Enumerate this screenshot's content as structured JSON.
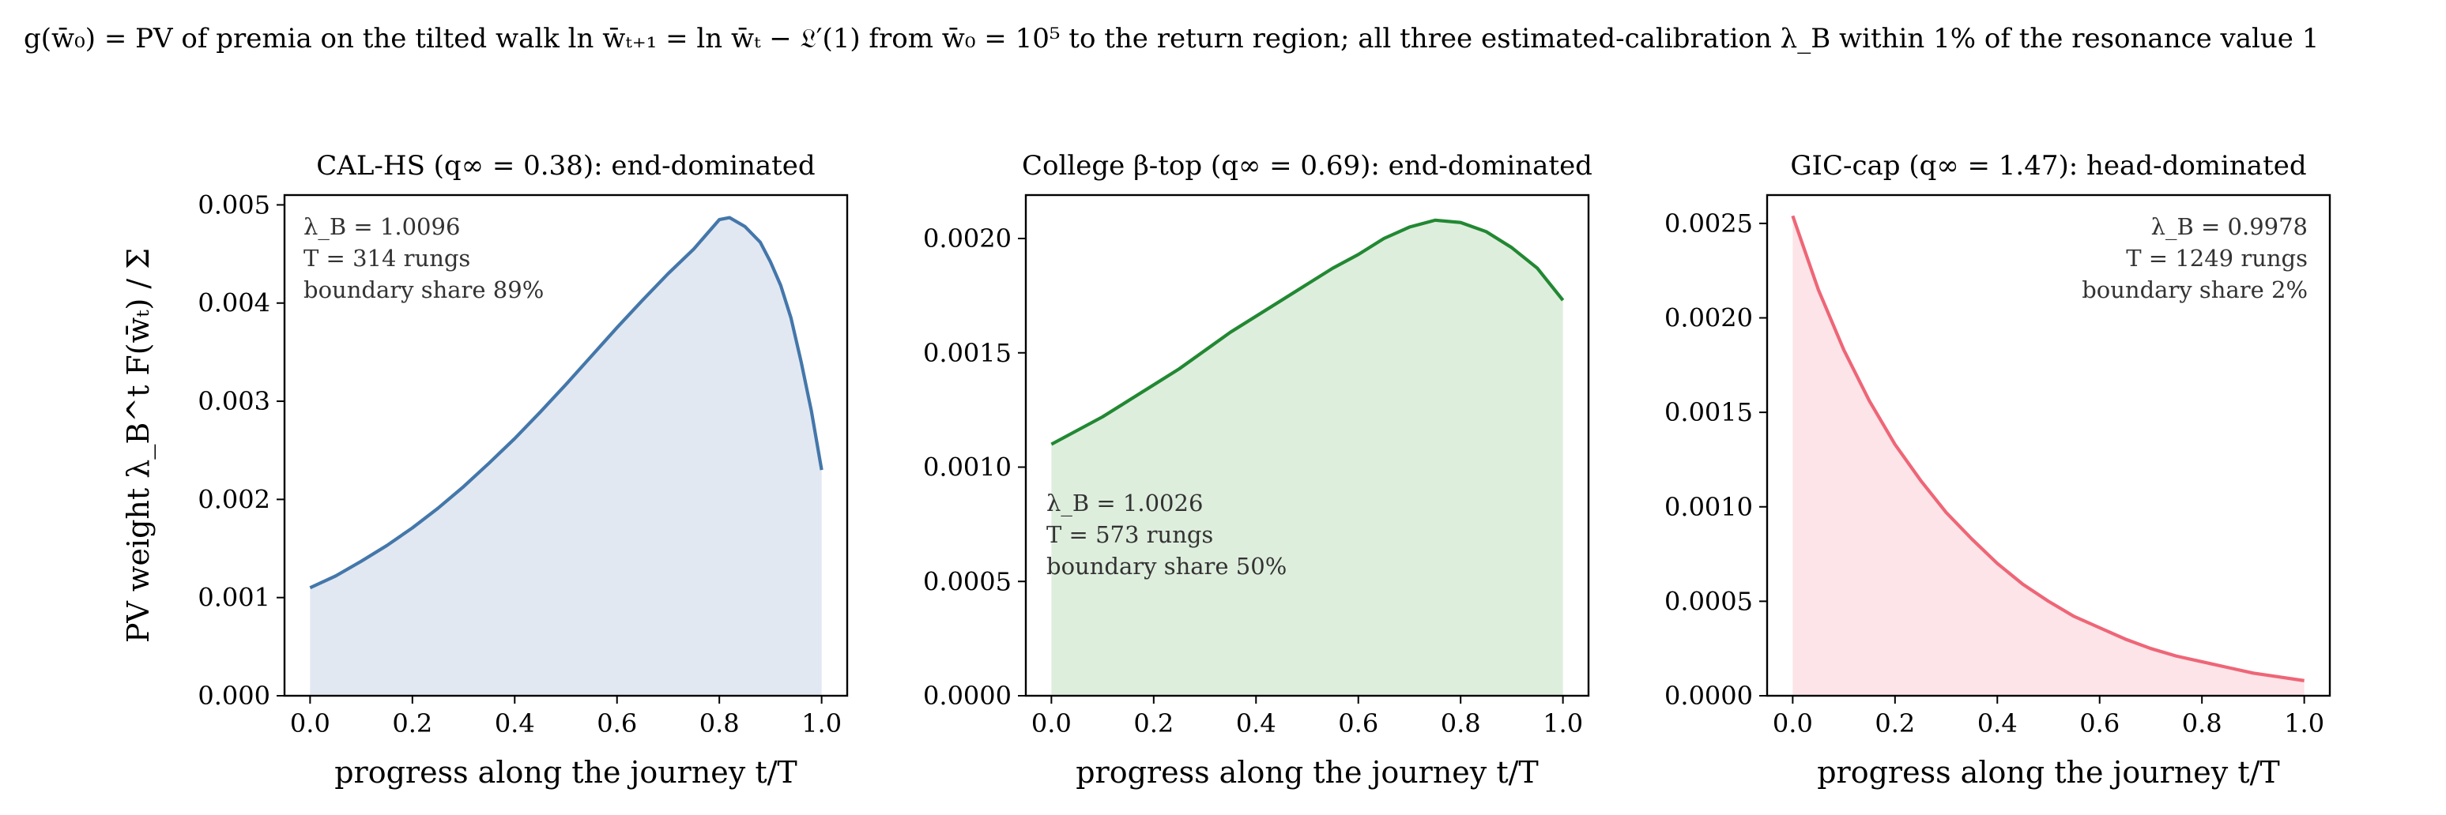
{
  "suptitle": "g(w̄₀) = PV of premia on the tilted walk ln w̄ₜ₊₁ = ln w̄ₜ − 𝔏′(1) from w̄₀ = 10⁵ to the return region;  all three estimated-calibration λ_B within 1% of the resonance value 1",
  "chart_data": [
    {
      "type": "area",
      "title": "CAL-HS (q∞ = 0.38): end-dominated",
      "xlabel": "progress along the journey  t/T",
      "ylabel": "PV weight  λ_B^t F(w̄ₜ) / Σ",
      "xlim": [
        -0.05,
        1.05
      ],
      "ylim": [
        0,
        0.0051
      ],
      "xticks": [
        "0.0",
        "0.2",
        "0.4",
        "0.6",
        "0.8",
        "1.0"
      ],
      "yticks": [
        "0.000",
        "0.001",
        "0.002",
        "0.003",
        "0.004",
        "0.005"
      ],
      "annotation": [
        "λ_B = 1.0096",
        "T = 314 rungs",
        "boundary share 89%"
      ],
      "annotation_position": "top-left",
      "color": "#4477aa",
      "fill": "#e2e8f1",
      "x": [
        0.0,
        0.05,
        0.1,
        0.15,
        0.2,
        0.25,
        0.3,
        0.35,
        0.4,
        0.45,
        0.5,
        0.55,
        0.6,
        0.65,
        0.7,
        0.75,
        0.8,
        0.82,
        0.85,
        0.88,
        0.9,
        0.92,
        0.94,
        0.96,
        0.98,
        1.0
      ],
      "y": [
        0.0011,
        0.00122,
        0.00137,
        0.00153,
        0.00171,
        0.00191,
        0.00213,
        0.00237,
        0.00262,
        0.00289,
        0.00317,
        0.00346,
        0.00375,
        0.00403,
        0.0043,
        0.00455,
        0.00485,
        0.00487,
        0.00478,
        0.00462,
        0.00442,
        0.00418,
        0.00385,
        0.0034,
        0.0029,
        0.0023
      ]
    },
    {
      "type": "area",
      "title": "College β-top (q∞ = 0.69): end-dominated",
      "xlabel": "progress along the journey  t/T",
      "ylabel": "",
      "xlim": [
        -0.05,
        1.05
      ],
      "ylim": [
        0,
        0.00219
      ],
      "xticks": [
        "0.0",
        "0.2",
        "0.4",
        "0.6",
        "0.8",
        "1.0"
      ],
      "yticks": [
        "0.0000",
        "0.0005",
        "0.0010",
        "0.0015",
        "0.0020"
      ],
      "annotation": [
        "λ_B = 1.0026",
        "T = 573 rungs",
        "boundary share 50%"
      ],
      "annotation_position": "middle-left",
      "color": "#228833",
      "fill": "#deeedd",
      "x": [
        0.0,
        0.05,
        0.1,
        0.15,
        0.2,
        0.25,
        0.3,
        0.35,
        0.4,
        0.45,
        0.5,
        0.55,
        0.6,
        0.65,
        0.7,
        0.75,
        0.8,
        0.85,
        0.9,
        0.95,
        1.0
      ],
      "y": [
        0.0011,
        0.00116,
        0.00122,
        0.00129,
        0.00136,
        0.00143,
        0.00151,
        0.00159,
        0.00166,
        0.00173,
        0.0018,
        0.00187,
        0.00193,
        0.002,
        0.00205,
        0.00208,
        0.00207,
        0.00203,
        0.00196,
        0.00187,
        0.00173
      ]
    },
    {
      "type": "area",
      "title": "GIC-cap (q∞ = 1.47): head-dominated",
      "xlabel": "progress along the journey  t/T",
      "ylabel": "",
      "xlim": [
        -0.05,
        1.05
      ],
      "ylim": [
        0,
        0.00265
      ],
      "xticks": [
        "0.0",
        "0.2",
        "0.4",
        "0.6",
        "0.8",
        "1.0"
      ],
      "yticks": [
        "0.0000",
        "0.0005",
        "0.0010",
        "0.0015",
        "0.0020",
        "0.0025"
      ],
      "annotation": [
        "λ_B = 0.9978",
        "T = 1249 rungs",
        "boundary share 2%"
      ],
      "annotation_position": "top-right",
      "color": "#ee6677",
      "fill": "#fce4e8",
      "x": [
        0.0,
        0.05,
        0.1,
        0.15,
        0.2,
        0.25,
        0.3,
        0.35,
        0.4,
        0.45,
        0.5,
        0.55,
        0.6,
        0.65,
        0.7,
        0.75,
        0.8,
        0.85,
        0.9,
        0.95,
        1.0
      ],
      "y": [
        0.00254,
        0.00215,
        0.00183,
        0.00156,
        0.00133,
        0.00114,
        0.00097,
        0.00083,
        0.0007,
        0.00059,
        0.0005,
        0.00042,
        0.00036,
        0.0003,
        0.00025,
        0.00021,
        0.00018,
        0.00015,
        0.00012,
        0.0001,
        8e-05
      ]
    }
  ]
}
